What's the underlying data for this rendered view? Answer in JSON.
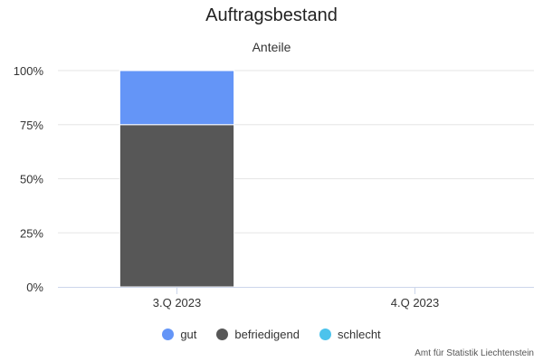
{
  "chart_data": {
    "type": "bar",
    "stacked": true,
    "title": "Auftragsbestand",
    "subtitle": "Anteile",
    "categories": [
      "3.Q 2023",
      "4.Q 2023"
    ],
    "series": [
      {
        "name": "gut",
        "color": "#6495f7",
        "values": [
          25,
          0
        ]
      },
      {
        "name": "befriedigend",
        "color": "#575757",
        "values": [
          75,
          0
        ]
      },
      {
        "name": "schlecht",
        "color": "#4cc3ec",
        "values": [
          0,
          0
        ]
      }
    ],
    "ylim": [
      0,
      100
    ],
    "yticks": [
      "0%",
      "25%",
      "50%",
      "75%",
      "100%"
    ],
    "grid": true,
    "legend_position": "bottom"
  },
  "credits": "Amt für Statistik Liechtenstein"
}
